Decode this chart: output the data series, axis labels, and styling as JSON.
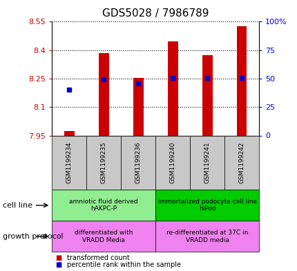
{
  "title": "GDS5028 / 7986789",
  "samples": [
    "GSM1199234",
    "GSM1199235",
    "GSM1199236",
    "GSM1199240",
    "GSM1199241",
    "GSM1199242"
  ],
  "bar_values": [
    7.975,
    8.385,
    8.255,
    8.445,
    8.375,
    8.525
  ],
  "bar_bottom": 7.95,
  "percentile_values": [
    8.19,
    8.245,
    8.225,
    8.255,
    8.255,
    8.255
  ],
  "ylim_left": [
    7.95,
    8.55
  ],
  "ylim_right": [
    0,
    100
  ],
  "yticks_left": [
    7.95,
    8.1,
    8.25,
    8.4,
    8.55
  ],
  "yticks_right": [
    0,
    25,
    50,
    75,
    100
  ],
  "ytick_labels_left": [
    "7.95",
    "8.1",
    "8.25",
    "8.4",
    "8.55"
  ],
  "ytick_labels_right": [
    "0",
    "25",
    "50",
    "75",
    "100%"
  ],
  "bar_color": "#cc0000",
  "percentile_color": "#0000cc",
  "cell_line_groups": [
    {
      "label": "amniotic fluid derived\nhAKPC-P",
      "indices": [
        0,
        1,
        2
      ],
      "color": "#90ee90"
    },
    {
      "label": "immortalized podocyte cell line\nhIPod",
      "indices": [
        3,
        4,
        5
      ],
      "color": "#00cc00"
    }
  ],
  "growth_protocol_groups": [
    {
      "label": "differentiated with\nVRADD Media",
      "indices": [
        0,
        1,
        2
      ],
      "color": "#ee82ee"
    },
    {
      "label": "re-differentiated at 37C in\nVRADD media",
      "indices": [
        3,
        4,
        5
      ],
      "color": "#ee82ee"
    }
  ],
  "cell_line_label": "cell line",
  "growth_protocol_label": "growth protocol",
  "legend_items": [
    {
      "label": "transformed count",
      "color": "#cc0000"
    },
    {
      "label": "percentile rank within the sample",
      "color": "#0000cc"
    }
  ],
  "background_color": "#ffffff",
  "plot_bg_color": "#ffffff",
  "tick_label_color_left": "#cc0000",
  "tick_label_color_right": "#0000cc",
  "grid_color": "#000000",
  "sample_bg_color": "#c8c8c8",
  "font_size_title": 11,
  "font_size_ticks": 8,
  "font_size_legend": 8,
  "font_size_labels": 8,
  "bar_width": 0.3
}
